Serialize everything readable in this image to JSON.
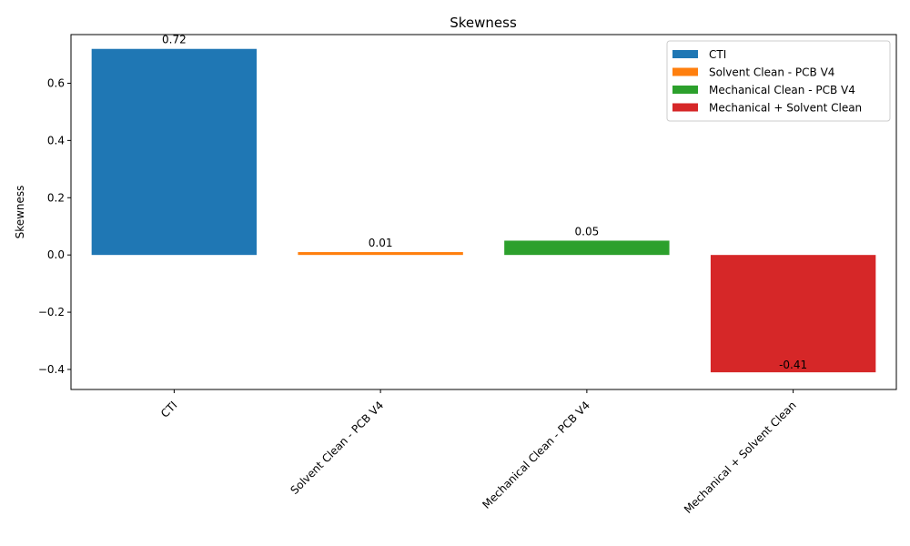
{
  "chart_data": {
    "type": "bar",
    "title": "Skewness",
    "xlabel": "",
    "ylabel": "Skewness",
    "categories": [
      "CTI",
      "Solvent Clean - PCB V4",
      "Mechanical Clean - PCB V4",
      "Mechanical + Solvent Clean"
    ],
    "values": [
      0.72,
      0.01,
      0.05,
      -0.41
    ],
    "value_labels": [
      "0.72",
      "0.01",
      "0.05",
      "-0.41"
    ],
    "colors": [
      "#1f77b4",
      "#ff7f0e",
      "#2ca02c",
      "#d62728"
    ],
    "ylim": [
      -0.47,
      0.77
    ],
    "yticks": [
      -0.4,
      -0.2,
      0.0,
      0.2,
      0.4,
      0.6
    ],
    "ytick_labels": [
      "−0.4",
      "−0.2",
      "0.0",
      "0.2",
      "0.4",
      "0.6"
    ],
    "grid": false,
    "legend": {
      "placement": "top-right",
      "entries": [
        "CTI",
        "Solvent Clean - PCB V4",
        "Mechanical Clean - PCB V4",
        "Mechanical + Solvent Clean"
      ]
    }
  }
}
